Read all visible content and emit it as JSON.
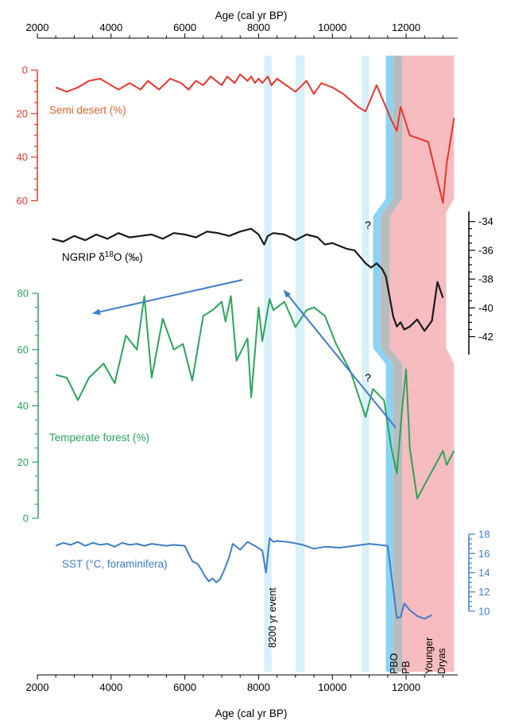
{
  "chart_data": {
    "type": "line",
    "x_axis": {
      "label": "Age (cal yr BP)",
      "range": [
        2000,
        13400
      ],
      "ticks": [
        2000,
        4000,
        6000,
        8000,
        10000,
        12000
      ]
    },
    "panels": [
      {
        "id": "semi_desert",
        "name": "Semi desert (%)",
        "color": "#e8352d",
        "label_color": "#e8602c",
        "axis_side": "left",
        "ylim": [
          0,
          62
        ],
        "inverted": true,
        "ticks": [
          0,
          20,
          40,
          60
        ],
        "x": [
          2500,
          2800,
          3100,
          3400,
          3700,
          4000,
          4200,
          4500,
          4800,
          5000,
          5300,
          5600,
          5900,
          6100,
          6300,
          6500,
          6700,
          7000,
          7150,
          7350,
          7500,
          7700,
          7800,
          7900,
          8000,
          8100,
          8250,
          8350,
          8500,
          9000,
          9300,
          9500,
          9700,
          10000,
          10300,
          10700,
          10900,
          11200,
          11600,
          11750,
          11850,
          11950,
          12100,
          12600,
          13000,
          13100,
          13300
        ],
        "values": [
          8,
          10,
          8,
          5,
          4,
          7,
          9,
          6,
          9,
          5,
          9,
          4,
          6,
          9,
          5,
          7,
          3,
          7,
          3,
          6,
          2,
          5,
          3,
          6,
          4,
          6,
          3,
          7,
          4,
          10,
          5,
          11,
          6,
          8,
          11,
          17,
          19,
          7,
          23,
          28,
          17,
          22,
          30,
          33,
          61,
          43,
          22
        ]
      },
      {
        "id": "ngrip",
        "name": "NGRIP δ18O (‰)",
        "color": "#1a1a1a",
        "axis_side": "right",
        "ylim": [
          -42.8,
          -33.3
        ],
        "ticks": [
          -34,
          -36,
          -38,
          -40,
          -42
        ],
        "x": [
          2400,
          2700,
          3000,
          3300,
          3600,
          3900,
          4200,
          4500,
          4800,
          5100,
          5400,
          5700,
          6000,
          6300,
          6600,
          6900,
          7200,
          7500,
          7800,
          8000,
          8150,
          8250,
          8400,
          8700,
          9000,
          9300,
          9600,
          9800,
          10000,
          10200,
          10400,
          10600,
          10800,
          10900,
          11050,
          11200,
          11350,
          11450,
          11550,
          11650,
          11750,
          11850,
          11950,
          12100,
          12300,
          12500,
          12700,
          12850,
          13000
        ],
        "values": [
          -35.2,
          -35.4,
          -35.0,
          -35.3,
          -34.9,
          -35.2,
          -34.8,
          -35.1,
          -35.0,
          -34.9,
          -35.2,
          -34.8,
          -34.9,
          -35.1,
          -34.7,
          -34.8,
          -35.0,
          -34.7,
          -34.5,
          -34.9,
          -35.6,
          -35.0,
          -34.8,
          -34.9,
          -35.3,
          -34.9,
          -35.1,
          -35.6,
          -35.5,
          -35.7,
          -35.9,
          -36.0,
          -36.6,
          -36.9,
          -37.2,
          -36.9,
          -37.3,
          -37.8,
          -39.2,
          -40.6,
          -41.3,
          -41.0,
          -41.5,
          -41.3,
          -40.8,
          -41.6,
          -40.9,
          -38.2,
          -39.3
        ]
      },
      {
        "id": "temperate_forest",
        "name": "Temperate forest (%)",
        "color": "#2aa55a",
        "axis_side": "left",
        "ylim": [
          0,
          80
        ],
        "ticks": [
          0,
          20,
          40,
          60,
          80
        ],
        "x": [
          2500,
          2800,
          3100,
          3400,
          3800,
          4100,
          4400,
          4700,
          4900,
          5100,
          5400,
          5700,
          5950,
          6200,
          6500,
          6750,
          7000,
          7100,
          7250,
          7400,
          7700,
          7800,
          8000,
          8100,
          8300,
          8400,
          8700,
          9000,
          9300,
          9500,
          9800,
          10100,
          10500,
          10900,
          11100,
          11400,
          11600,
          11750,
          11900,
          12000,
          12100,
          12300,
          13000,
          13100,
          13300
        ],
        "values": [
          51,
          50,
          42,
          50,
          55,
          48,
          65,
          60,
          79,
          50,
          71,
          60,
          62,
          49,
          72,
          74,
          77,
          70,
          79,
          56,
          64,
          43,
          75,
          63,
          78,
          74,
          77,
          68,
          74,
          75,
          72,
          62,
          52,
          36,
          46,
          42,
          25,
          16,
          40,
          53,
          25,
          7,
          24,
          19,
          24
        ]
      },
      {
        "id": "sst",
        "name": "SST (°C, foraminifera)",
        "color": "#3f7dc8",
        "axis_side": "right",
        "ylim": [
          8.5,
          18.5
        ],
        "ticks": [
          10,
          12,
          14,
          16,
          18
        ],
        "x": [
          2500,
          2700,
          2900,
          3100,
          3300,
          3500,
          3700,
          3900,
          4100,
          4300,
          4500,
          4700,
          4900,
          5100,
          5300,
          5500,
          5700,
          6000,
          6200,
          6350,
          6450,
          6550,
          6650,
          6750,
          6850,
          6950,
          7050,
          7200,
          7300,
          7500,
          7700,
          7900,
          8100,
          8200,
          8300,
          8400,
          8500,
          8800,
          9200,
          9500,
          9800,
          10200,
          10600,
          11000,
          11500,
          11650,
          11750,
          11850,
          11950,
          12100,
          12300,
          12500,
          12700
        ],
        "values": [
          16.8,
          17.1,
          16.9,
          17.2,
          16.8,
          17.1,
          16.9,
          17.0,
          16.7,
          17.1,
          16.9,
          17.0,
          16.8,
          17.0,
          16.9,
          16.8,
          16.9,
          16.8,
          15.2,
          14.9,
          14.3,
          13.6,
          13.1,
          13.4,
          13.0,
          13.3,
          14.1,
          15.6,
          17.0,
          16.4,
          17.2,
          16.8,
          16.3,
          14.0,
          17.6,
          17.2,
          17.3,
          17.2,
          16.9,
          16.5,
          16.7,
          16.6,
          16.8,
          17.0,
          16.8,
          12.3,
          9.3,
          9.4,
          10.8,
          10.1,
          9.5,
          9.2,
          9.6
        ]
      }
    ],
    "event_bands": [
      {
        "label": "8200 yr event",
        "range": [
          8150,
          8350
        ],
        "color": "#d7f0fa"
      },
      {
        "label": "",
        "range": [
          9000,
          9250
        ],
        "color": "#d7f0fa"
      },
      {
        "label": "",
        "range": [
          10800,
          11000
        ],
        "color": "#d7f0fa"
      },
      {
        "label": "PBO",
        "range": [
          11450,
          11650
        ],
        "color": "#8ad3f2"
      },
      {
        "label": "PB",
        "range": [
          11650,
          11900
        ],
        "color": "#b9bcbf"
      },
      {
        "label": "Younger Dryas",
        "range": [
          11900,
          13300
        ],
        "color": "#f6bcc0"
      }
    ],
    "annotations": [
      "?",
      "?"
    ]
  }
}
